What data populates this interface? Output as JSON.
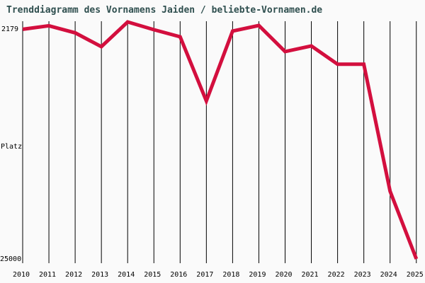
{
  "chart_data": {
    "type": "line",
    "title": "Trenddiagramm des Vornamens Jaiden / beliebte-Vornamen.de",
    "xlabel": "",
    "ylabel": "Platz",
    "x": [
      2010,
      2011,
      2012,
      2013,
      2014,
      2015,
      2016,
      2017,
      2018,
      2019,
      2020,
      2021,
      2022,
      2023,
      2024,
      2025
    ],
    "values": [
      2890,
      2550,
      3230,
      4560,
      2179,
      2930,
      3610,
      9790,
      3060,
      2520,
      5030,
      4490,
      6250,
      6250,
      18480,
      25000
    ],
    "ylim": [
      2179,
      25000
    ],
    "y_axis_inverted": true,
    "y_axis_top_label": "2179",
    "y_axis_bottom_label": "25000",
    "grid": "vertical gridline per year",
    "legend_position": "none",
    "line_color": "#D30F3E",
    "grid_color": "#000000",
    "title_color": "#2F4F4F",
    "background_color": "#FAFAFA"
  }
}
